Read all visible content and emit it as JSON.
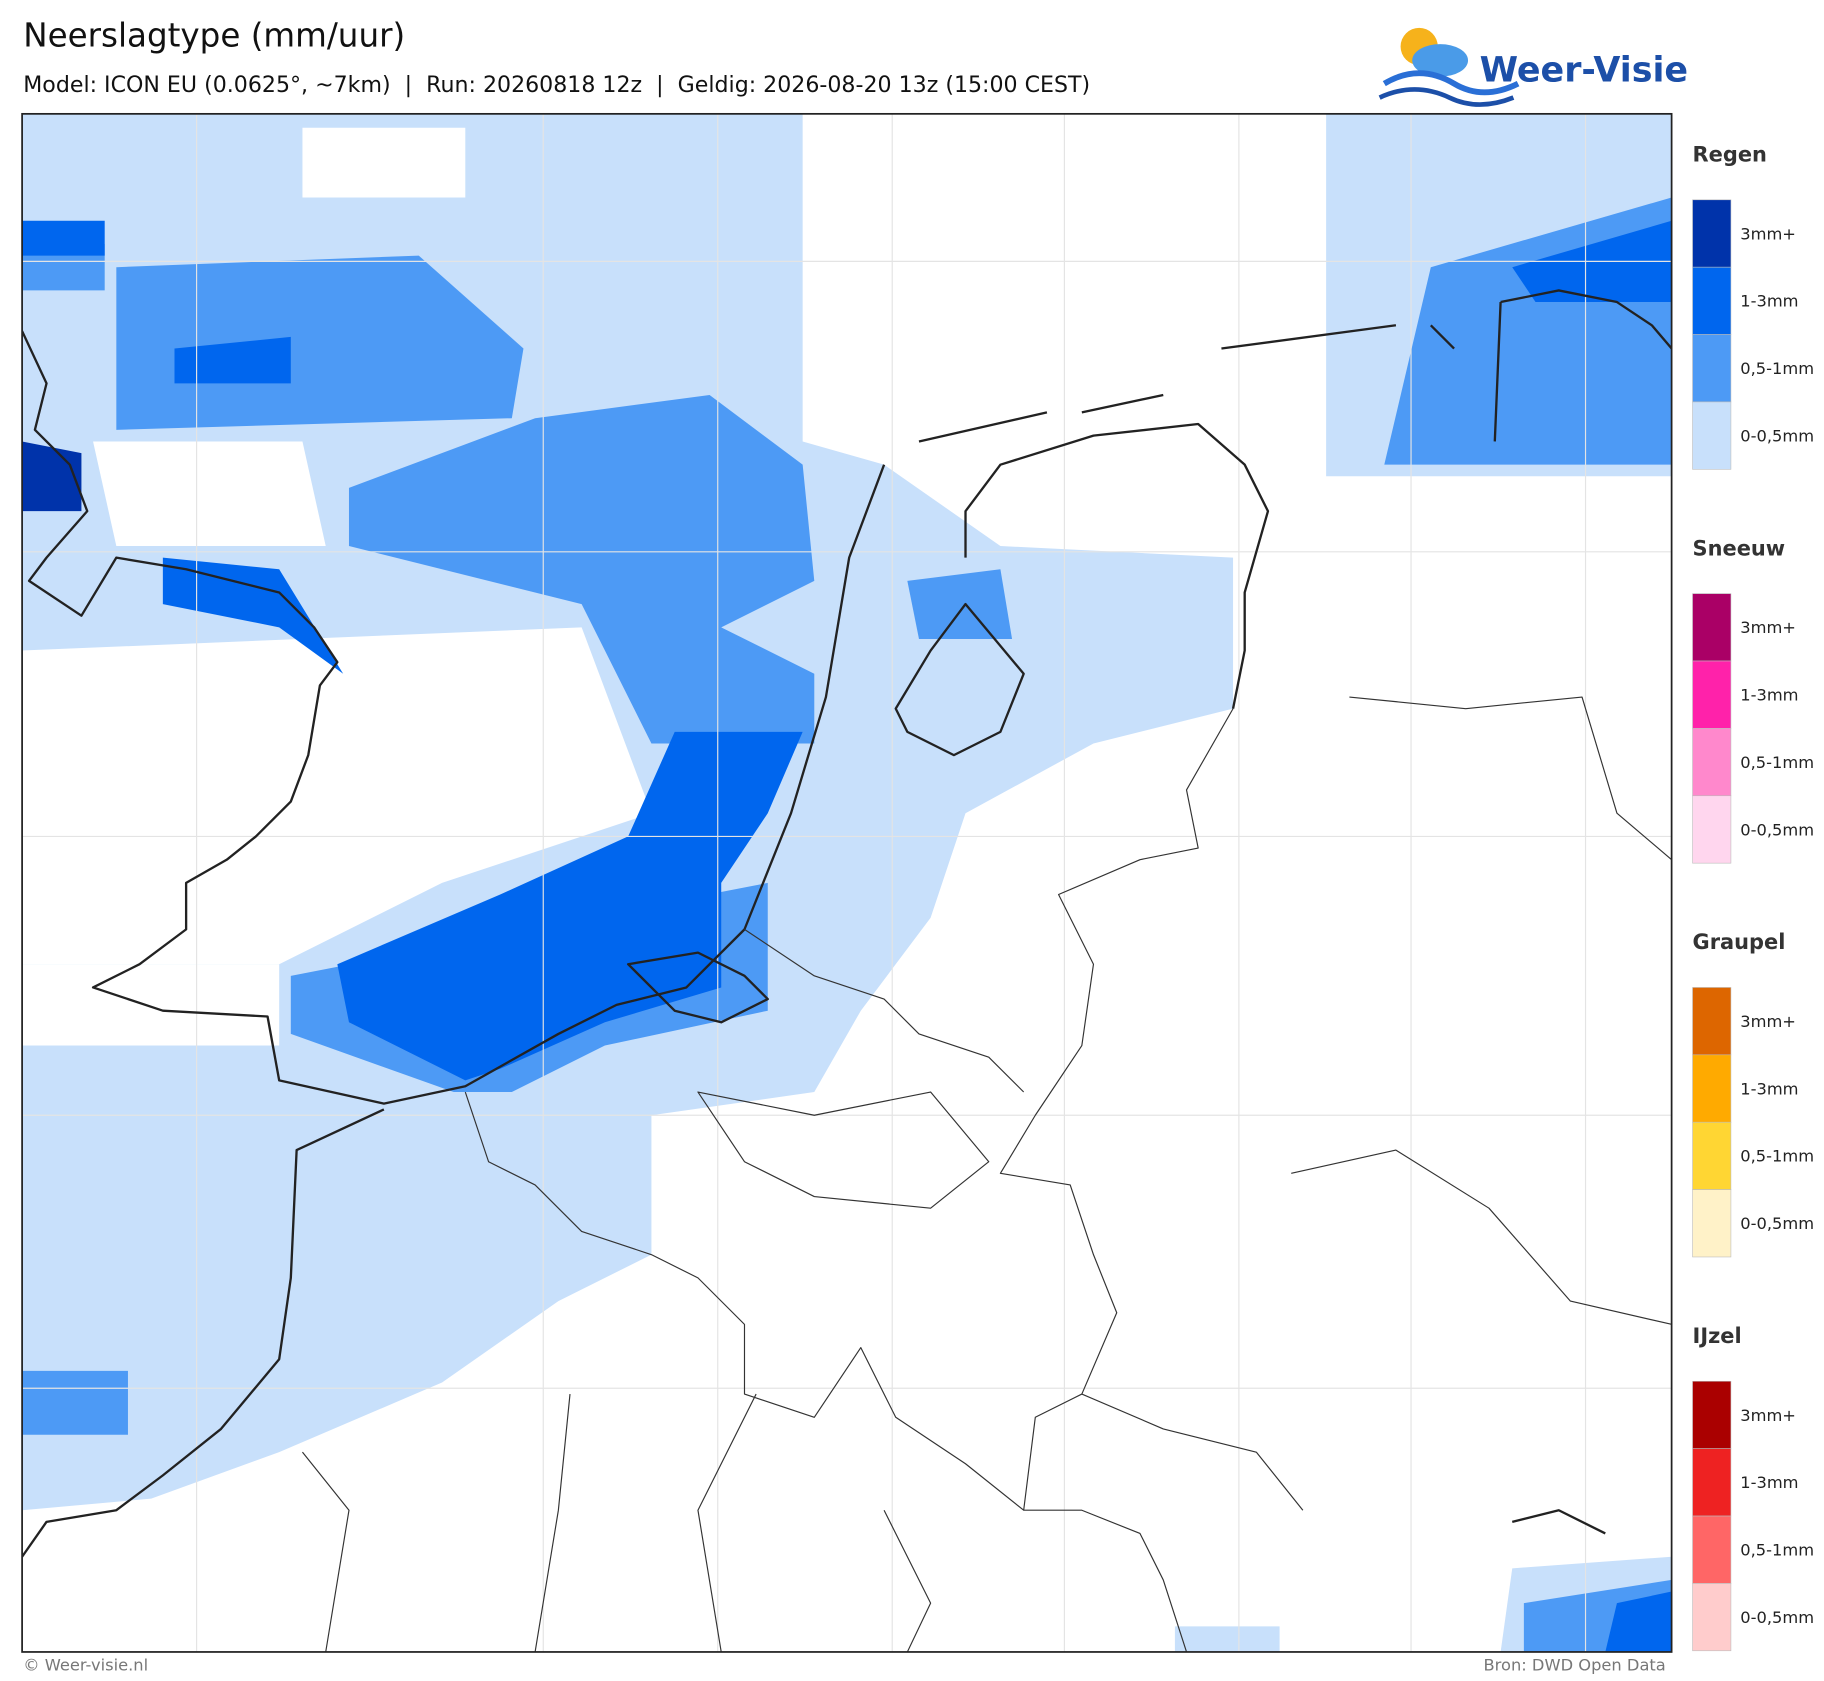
{
  "header": {
    "title": "Neerslagtype (mm/uur)",
    "subtitle": "Model: ICON EU (0.0625°, ~7km)  |  Run: 20260818 12z  |  Geldig: 2026-08-20 13z (15:00 CEST)",
    "logo": "Weer-Visie"
  },
  "legend": [
    {
      "name": "Regen",
      "classes": [
        "3mm+",
        "1-3mm",
        "0,5-1mm",
        "0-0,5mm"
      ],
      "colors": [
        "#0033aa",
        "#0066ee",
        "#4d9af5",
        "#c8e0fb"
      ]
    },
    {
      "name": "Sneeuw",
      "classes": [
        "3mm+",
        "1-3mm",
        "0,5-1mm",
        "0-0,5mm"
      ],
      "colors": [
        "#aa0066",
        "#ff22aa",
        "#ff88cc",
        "#ffd6ee"
      ]
    },
    {
      "name": "Graupel",
      "classes": [
        "3mm+",
        "1-3mm",
        "0,5-1mm",
        "0-0,5mm"
      ],
      "colors": [
        "#dd6600",
        "#ffaa00",
        "#ffd633",
        "#fff2c8"
      ]
    },
    {
      "name": "IJzel",
      "classes": [
        "3mm+",
        "1-3mm",
        "0,5-1mm",
        "0-0,5mm"
      ],
      "colors": [
        "#aa0000",
        "#ee2222",
        "#ff6666",
        "#ffcccc"
      ]
    }
  ],
  "footer": {
    "copyright": "© Weer-visie.nl",
    "source": "Bron: DWD Open Data"
  }
}
